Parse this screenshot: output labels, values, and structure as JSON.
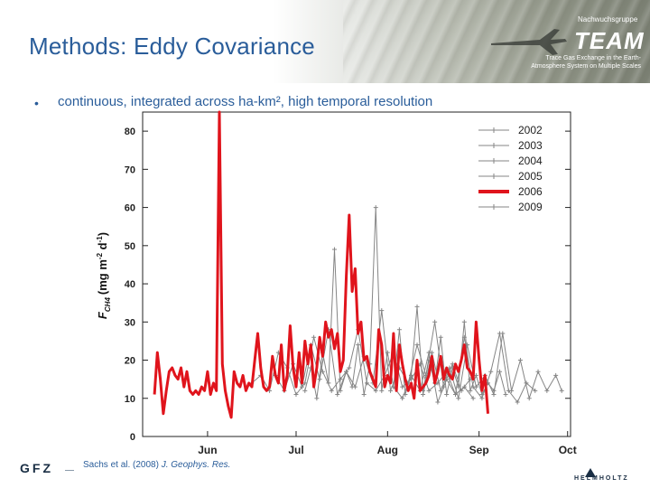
{
  "header": {
    "title": "Methods: Eddy Covariance",
    "group_label": "Nachwuchsgruppe",
    "team_label": "TEAM",
    "tagline_1": "Trace Gas Exchange in the Earth-",
    "tagline_2": "Atmosphere System on Multiple Scales"
  },
  "bullet": {
    "text": "continuous, integrated across ha-km², high temporal resolution"
  },
  "footer": {
    "logo": "GFZ",
    "citation_authors": "Sachs et al. (2008) ",
    "citation_journal": "J. Geophys. Res.",
    "helmholtz": "HELMHOLTZ"
  },
  "colors": {
    "title": "#2a5d9a",
    "highlight": "#e0141c",
    "grey": "#858585"
  },
  "chart_data": {
    "type": "line",
    "title": "",
    "xlabel": "",
    "ylabel": "F_CH4 (mg m^-2 d^-1)",
    "ylabel_parts": {
      "f": "F",
      "sub": "CH4",
      "units": "(mg m",
      "exp1": "-2",
      "d": " d",
      "exp2": "-1",
      "close": ")"
    },
    "x_range_day": [
      145,
      290
    ],
    "ylim": [
      0,
      85
    ],
    "yticks": [
      0,
      10,
      20,
      30,
      40,
      50,
      60,
      70,
      80
    ],
    "xticks": [
      {
        "label": "Jun",
        "day": 167
      },
      {
        "label": "Jul",
        "day": 197
      },
      {
        "label": "Aug",
        "day": 228
      },
      {
        "label": "Sep",
        "day": 259
      },
      {
        "label": "Oct",
        "day": 289
      }
    ],
    "legend": [
      "2002",
      "2003",
      "2004",
      "2005",
      "2006",
      "2009"
    ],
    "highlight_series": "2006",
    "series": [
      {
        "name": "2002",
        "x": [
          182,
          185,
          188,
          191,
          194,
          197,
          200,
          203,
          206,
          209,
          212,
          215,
          218,
          221,
          224,
          227,
          230,
          233,
          236,
          239,
          242,
          245,
          248,
          251,
          254,
          257
        ],
        "values": [
          14,
          16,
          12,
          22,
          18,
          11,
          14,
          26,
          17,
          12,
          15,
          18,
          28,
          14,
          12,
          16,
          22,
          13,
          15,
          19,
          12,
          14,
          17,
          11,
          13,
          10
        ]
      },
      {
        "name": "2003",
        "x": [
          190,
          193,
          196,
          199,
          202,
          205,
          208,
          211,
          214,
          217,
          220,
          223,
          226,
          229,
          232,
          235,
          238,
          241,
          244,
          247,
          250,
          253,
          256
        ],
        "values": [
          16,
          12,
          19,
          13,
          24,
          15,
          28,
          11,
          17,
          13,
          21,
          14,
          33,
          12,
          18,
          14,
          24,
          16,
          30,
          13,
          19,
          12,
          15
        ]
      },
      {
        "name": "2004",
        "x": [
          200,
          202,
          204,
          206,
          208,
          210,
          212,
          214,
          216,
          218,
          220,
          222,
          224,
          226,
          228,
          230,
          232,
          234,
          236,
          238,
          240,
          242,
          244,
          246,
          248,
          250,
          252,
          254,
          256,
          258,
          260,
          262,
          264,
          266,
          268
        ],
        "values": [
          12,
          18,
          10,
          22,
          14,
          49,
          12,
          17,
          13,
          24,
          11,
          19,
          60,
          12,
          22,
          13,
          28,
          11,
          16,
          34,
          12,
          20,
          14,
          26,
          11,
          18,
          13,
          30,
          12,
          16,
          11,
          14,
          12,
          17,
          11
        ]
      },
      {
        "name": "2005",
        "x": [
          230,
          233,
          236,
          239,
          242,
          245,
          248,
          251,
          254,
          257,
          260,
          263,
          266,
          269,
          272,
          275,
          278
        ],
        "values": [
          13,
          10,
          16,
          12,
          22,
          9,
          15,
          11,
          26,
          13,
          10,
          17,
          27,
          12,
          9,
          14,
          12
        ]
      },
      {
        "name": "2009",
        "x": [
          240,
          243,
          246,
          249,
          252,
          255,
          258,
          261,
          264,
          267,
          270,
          273,
          276,
          279,
          282,
          285,
          287
        ],
        "values": [
          11,
          22,
          12,
          18,
          10,
          24,
          13,
          16,
          11,
          27,
          12,
          20,
          10,
          17,
          12,
          16,
          12
        ]
      },
      {
        "name": "2006",
        "x": [
          149,
          150,
          151,
          152,
          153,
          154,
          155,
          156,
          157,
          158,
          159,
          160,
          161,
          162,
          163,
          164,
          165,
          166,
          167,
          168,
          169,
          170,
          171,
          172,
          173,
          174,
          175,
          176,
          177,
          178,
          179,
          180,
          181,
          182,
          183,
          184,
          185,
          186,
          187,
          188,
          189,
          190,
          191,
          192,
          193,
          194,
          195,
          196,
          197,
          198,
          199,
          200,
          201,
          202,
          203,
          204,
          205,
          206,
          207,
          208,
          209,
          210,
          211,
          212,
          213,
          214,
          215,
          216,
          217,
          218,
          219,
          220,
          221,
          222,
          223,
          224,
          225,
          226,
          227,
          228,
          229,
          230,
          231,
          232,
          233,
          234,
          235,
          236,
          237,
          238,
          239,
          240,
          241,
          242,
          243,
          244,
          245,
          246,
          247,
          248,
          249,
          250,
          251,
          252,
          253,
          254,
          255,
          256,
          257,
          258,
          259,
          260,
          261,
          262
        ],
        "values": [
          11,
          22,
          15,
          6,
          12,
          17,
          18,
          16,
          15,
          18,
          13,
          17,
          12,
          11,
          12,
          11,
          13,
          12,
          17,
          11,
          14,
          12,
          85,
          19,
          12,
          8,
          5,
          17,
          14,
          13,
          16,
          12,
          14,
          13,
          20,
          27,
          18,
          13,
          12,
          13,
          21,
          16,
          14,
          24,
          12,
          16,
          29,
          18,
          13,
          22,
          14,
          25,
          19,
          24,
          13,
          18,
          26,
          21,
          30,
          26,
          28,
          23,
          27,
          17,
          20,
          42,
          58,
          38,
          44,
          27,
          30,
          20,
          21,
          17,
          15,
          13,
          28,
          24,
          13,
          16,
          14,
          27,
          12,
          24,
          19,
          15,
          12,
          14,
          10,
          20,
          12,
          13,
          14,
          16,
          21,
          14,
          17,
          21,
          15,
          18,
          16,
          15,
          19,
          17,
          20,
          24,
          18,
          17,
          15,
          30,
          20,
          12,
          16,
          6
        ]
      }
    ]
  }
}
